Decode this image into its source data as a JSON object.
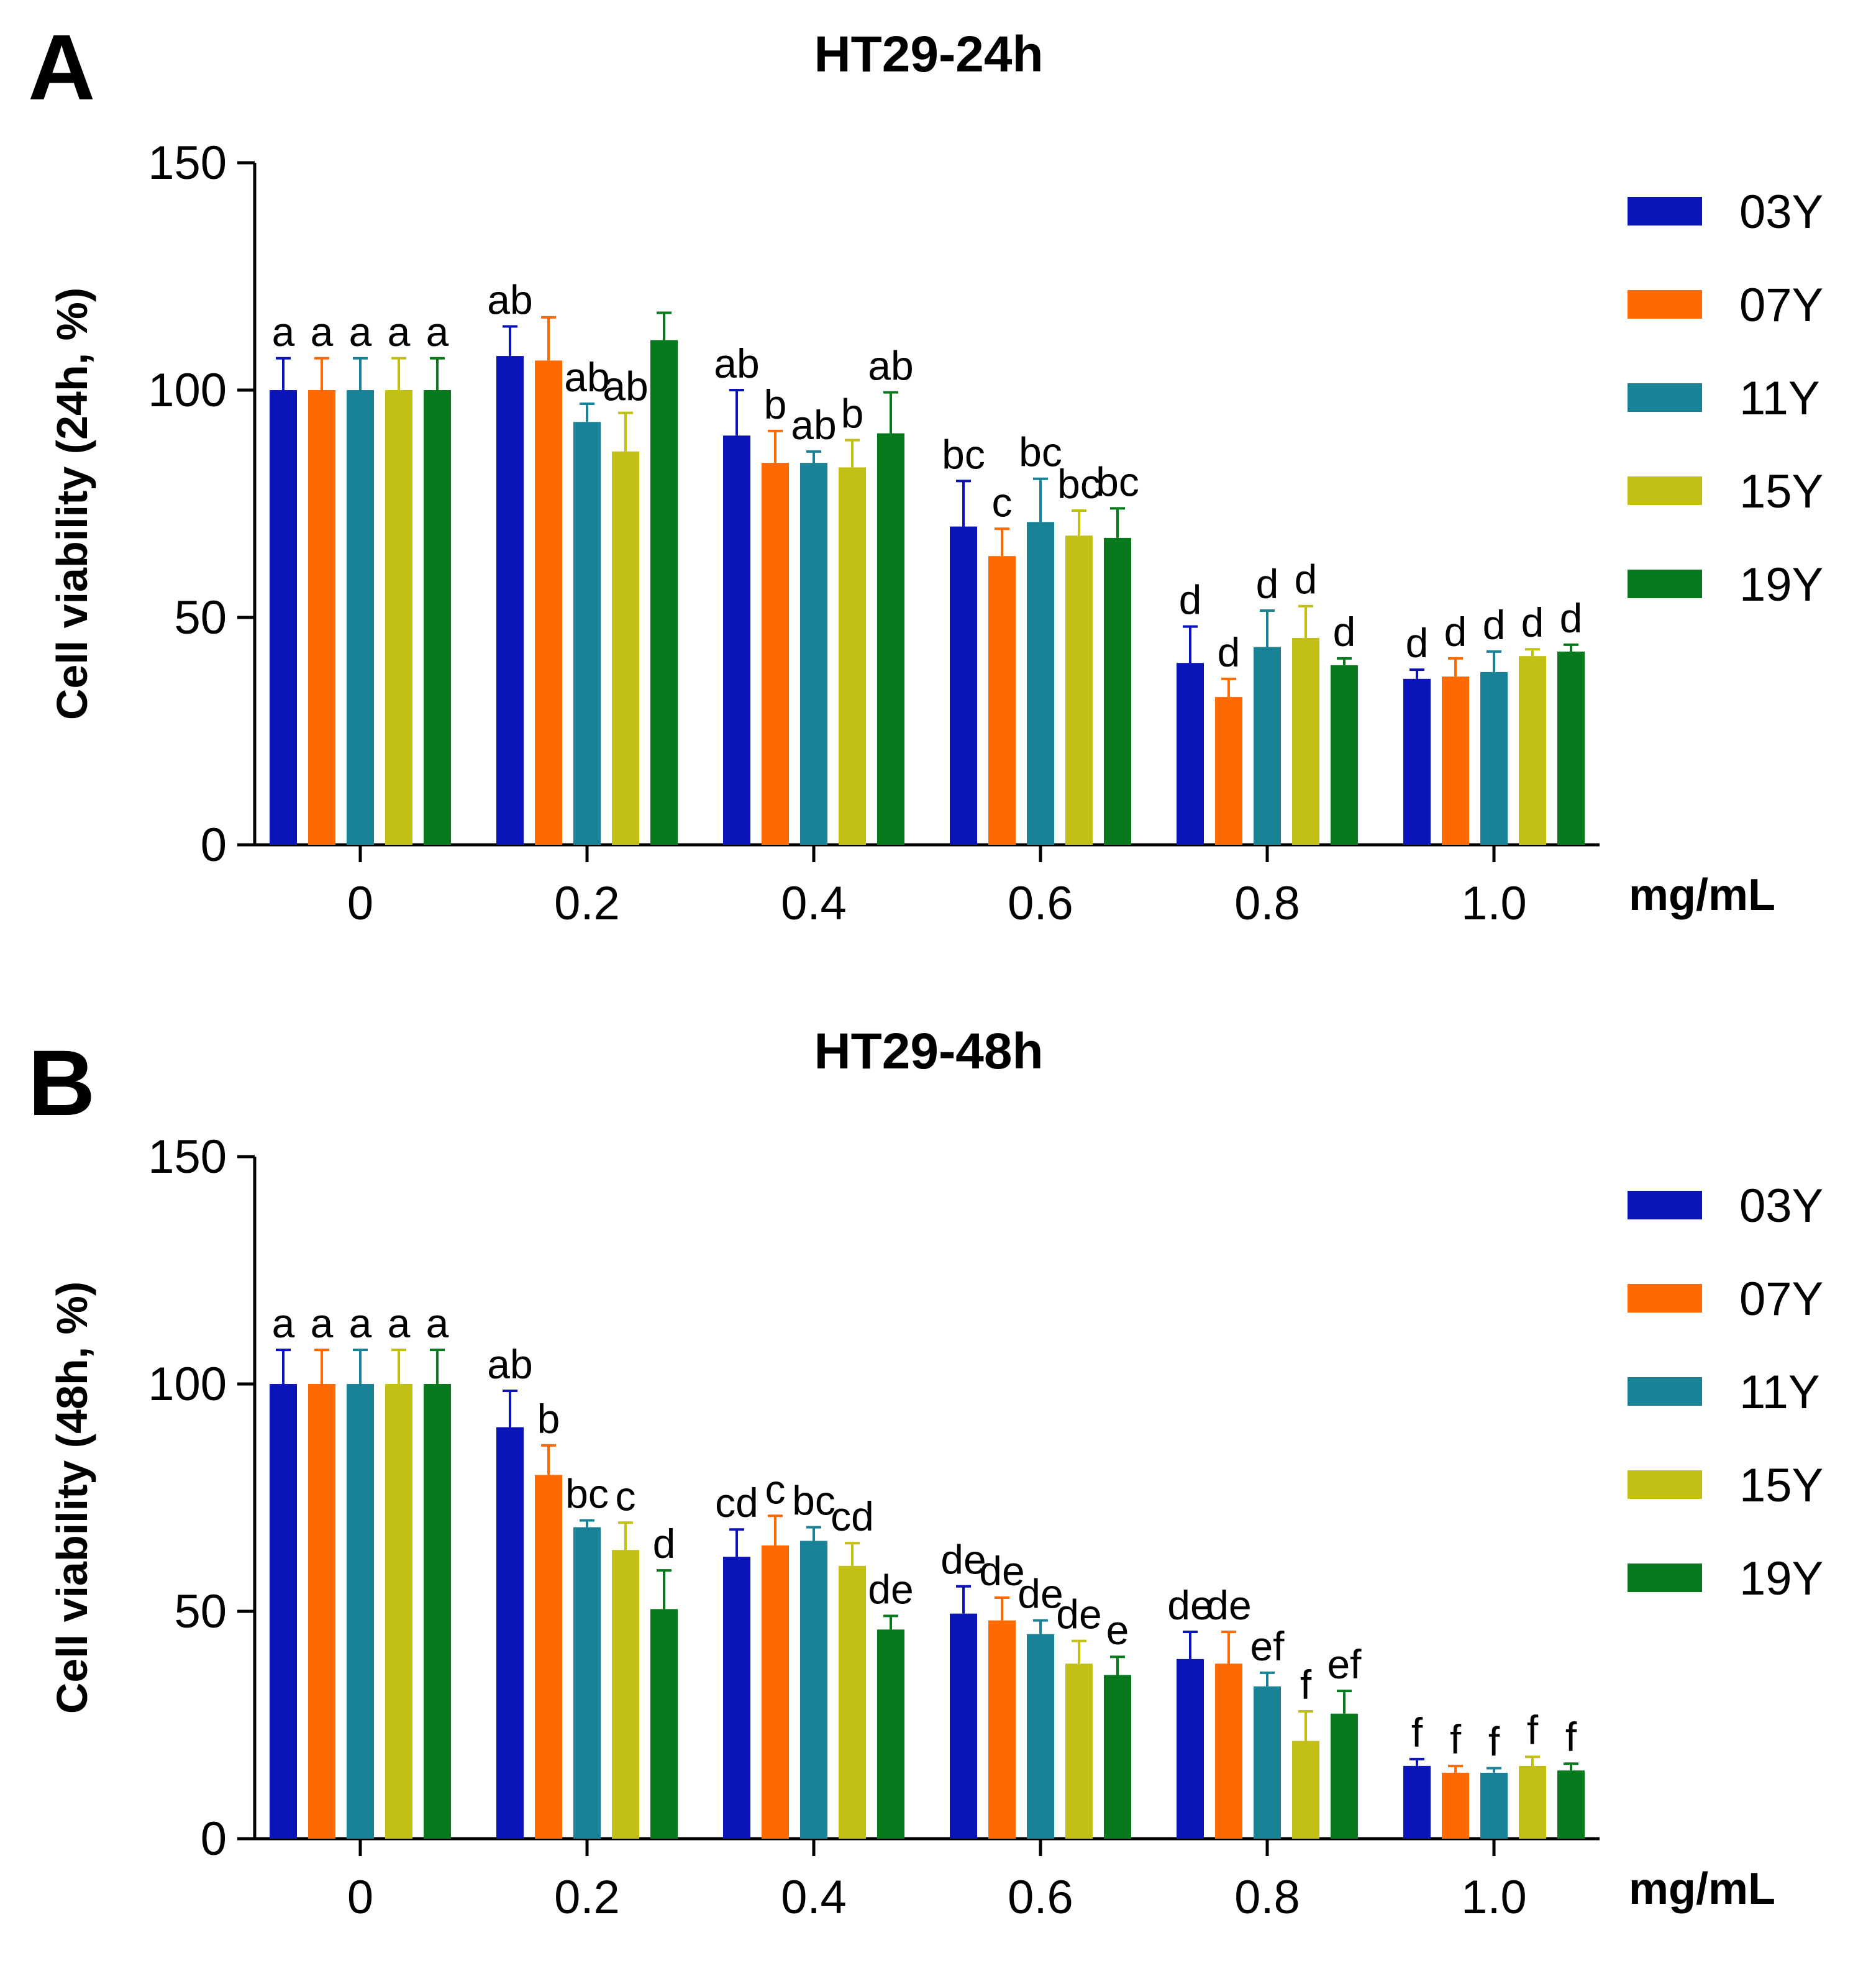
{
  "panels": [
    {
      "letter": "A",
      "chart_data": {
        "type": "bar",
        "title": "HT29-24h",
        "xlabel": "",
        "x_unit": "mg/mL",
        "ylabel": "Cell viability (24h, %)",
        "ylim": [
          0,
          150
        ],
        "yticks": [
          "0",
          "50",
          "100",
          "150"
        ],
        "categories": [
          "0",
          "0.2",
          "0.4",
          "0.6",
          "0.8",
          "1.0"
        ],
        "legend_position": "right",
        "series": [
          {
            "name": "03Y",
            "color": "#0a14b8",
            "values": [
              100,
              107.5,
              90,
              70,
              40,
              36.5
            ],
            "errors": [
              7,
              6.5,
              10,
              10,
              8,
              2
            ],
            "labels": [
              "a",
              "ab",
              "ab",
              "bc",
              "d",
              "d"
            ]
          },
          {
            "name": "07Y",
            "color": "#ff6a00",
            "values": [
              100,
              106.5,
              84,
              63.5,
              32.5,
              37
            ],
            "errors": [
              7,
              9.5,
              7,
              6,
              4,
              4
            ],
            "labels": [
              "a",
              "",
              "b",
              "c",
              "d",
              "d"
            ]
          },
          {
            "name": "11Y",
            "color": "#1a8296",
            "values": [
              100,
              93,
              84,
              71,
              43.5,
              38
            ],
            "errors": [
              7,
              4,
              2.5,
              9.5,
              8,
              4.5
            ],
            "labels": [
              "a",
              "ab",
              "ab",
              "bc",
              "d",
              "d"
            ]
          },
          {
            "name": "15Y",
            "color": "#c2c014",
            "values": [
              100,
              86.5,
              83,
              68,
              45.5,
              41.5
            ],
            "errors": [
              7,
              8.5,
              6,
              5.5,
              7,
              1.5
            ],
            "labels": [
              "a",
              "ab",
              "b",
              "bc",
              "d",
              "d"
            ]
          },
          {
            "name": "19Y",
            "color": "#087a1e",
            "values": [
              100,
              111,
              90.5,
              67.5,
              39.5,
              42.5
            ],
            "errors": [
              7,
              6,
              9,
              6.5,
              1.5,
              1.5
            ],
            "labels": [
              "a",
              "",
              "ab",
              "bc",
              "d",
              "d"
            ]
          }
        ]
      }
    },
    {
      "letter": "B",
      "chart_data": {
        "type": "bar",
        "title": "HT29-48h",
        "xlabel": "",
        "x_unit": "mg/mL",
        "ylabel": "Cell viability (48h, %)",
        "ylim": [
          0,
          150
        ],
        "yticks": [
          "0",
          "50",
          "100",
          "150"
        ],
        "categories": [
          "0",
          "0.2",
          "0.4",
          "0.6",
          "0.8",
          "1.0"
        ],
        "legend_position": "right",
        "series": [
          {
            "name": "03Y",
            "color": "#0a14b8",
            "values": [
              100,
              90.5,
              62,
              49.5,
              39.5,
              16
            ],
            "errors": [
              7.5,
              8,
              6,
              6,
              6,
              1.5
            ],
            "labels": [
              "a",
              "ab",
              "cd",
              "de",
              "de",
              "f"
            ]
          },
          {
            "name": "07Y",
            "color": "#ff6a00",
            "values": [
              100,
              80,
              64.5,
              48,
              38.5,
              14.5
            ],
            "errors": [
              7.5,
              6.5,
              6.5,
              5,
              7,
              1.5
            ],
            "labels": [
              "a",
              "b",
              "c",
              "de",
              "de",
              "f"
            ]
          },
          {
            "name": "11Y",
            "color": "#1a8296",
            "values": [
              100,
              68.5,
              65.5,
              45,
              33.5,
              14.5
            ],
            "errors": [
              7.5,
              1.5,
              3,
              3,
              3,
              1
            ],
            "labels": [
              "a",
              "bc",
              "bc",
              "de",
              "ef",
              "f"
            ]
          },
          {
            "name": "15Y",
            "color": "#c2c014",
            "values": [
              100,
              63.5,
              60,
              38.5,
              21.5,
              16
            ],
            "errors": [
              7.5,
              6,
              5,
              5,
              6.5,
              2
            ],
            "labels": [
              "a",
              "c",
              "cd",
              "de",
              "f",
              "f"
            ]
          },
          {
            "name": "19Y",
            "color": "#087a1e",
            "values": [
              100,
              50.5,
              46,
              36,
              27.5,
              15
            ],
            "errors": [
              7.5,
              8.5,
              3,
              4,
              5,
              1.5
            ],
            "labels": [
              "a",
              "d",
              "de",
              "e",
              "ef",
              "f"
            ]
          }
        ]
      }
    }
  ]
}
